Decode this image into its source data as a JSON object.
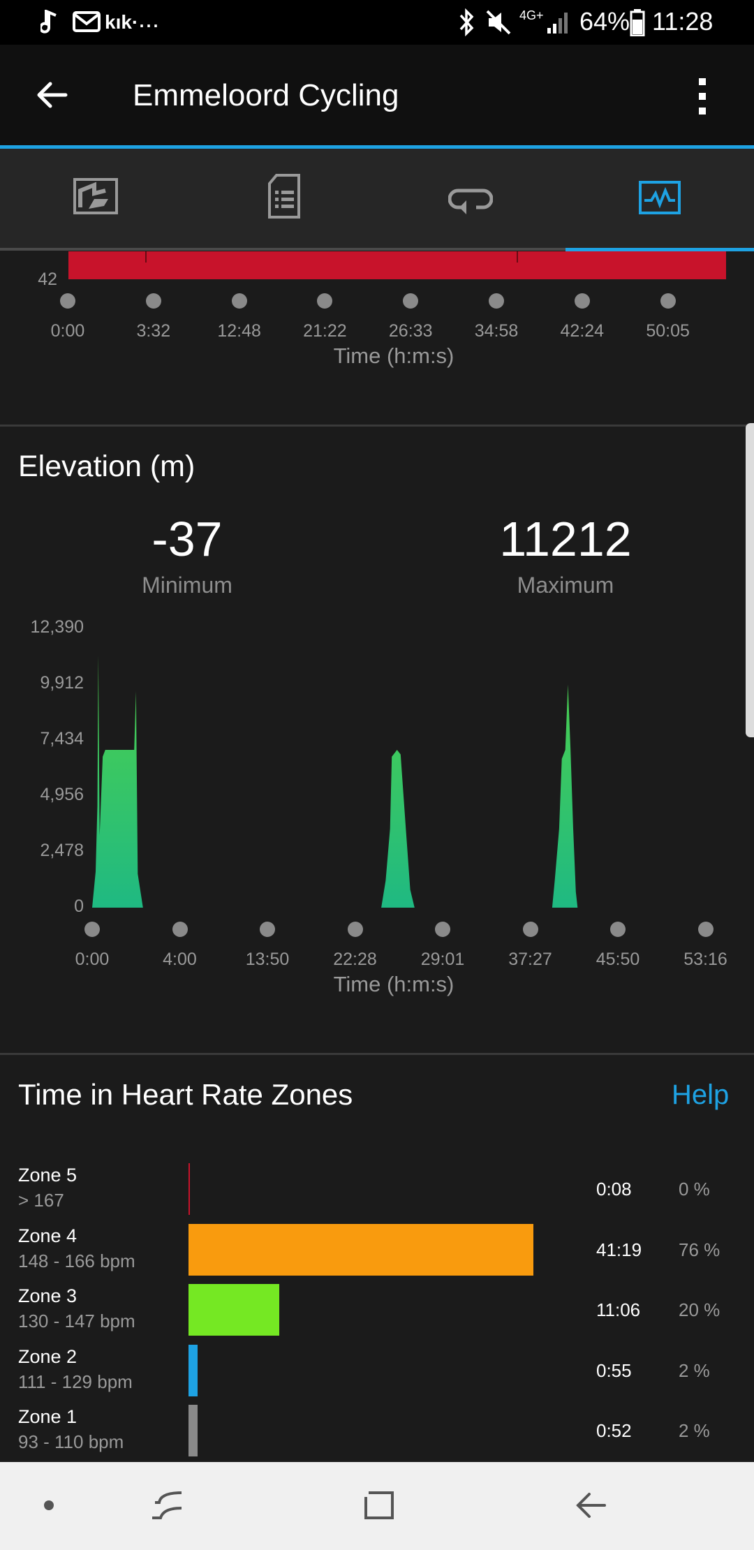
{
  "status_bar": {
    "battery": "64%",
    "time": "11:28",
    "network": "4G+",
    "app_label": "kık·",
    "more": "..."
  },
  "app_bar": {
    "title": "Emmeloord Cycling"
  },
  "tabs": [
    {
      "icon": "map-icon"
    },
    {
      "icon": "document-list-icon"
    },
    {
      "icon": "laps-icon"
    },
    {
      "icon": "chart-icon",
      "selected": true
    }
  ],
  "top_chart": {
    "y_label_visible": "42",
    "bar_color": "#c8132b",
    "x_ticks": [
      "0:00",
      "3:32",
      "12:48",
      "21:22",
      "26:33",
      "34:58",
      "42:24",
      "50:05"
    ],
    "x_title": "Time (h:m:s)"
  },
  "elevation": {
    "title": "Elevation (m)",
    "minimum_value": "-37",
    "minimum_label": "Minimum",
    "maximum_value": "11212",
    "maximum_label": "Maximum"
  },
  "chart_data": {
    "type": "area",
    "color": "#3ecb6a",
    "y_ticks": [
      "12,390",
      "9,912",
      "7,434",
      "4,956",
      "2,478",
      "0"
    ],
    "ylim": [
      0,
      12390
    ],
    "x_ticks": [
      "0:00",
      "4:00",
      "13:50",
      "22:28",
      "29:01",
      "37:27",
      "45:50",
      "53:16"
    ],
    "xlabel": "Time (h:m:s)",
    "x_tick_index": [
      0,
      1,
      2,
      3,
      4,
      5,
      6,
      7
    ],
    "points": [
      [
        0.0,
        0
      ],
      [
        0.04,
        1600
      ],
      [
        0.06,
        4500
      ],
      [
        0.07,
        11200
      ],
      [
        0.085,
        3200
      ],
      [
        0.12,
        6700
      ],
      [
        0.15,
        7000
      ],
      [
        0.2,
        7000
      ],
      [
        0.48,
        7000
      ],
      [
        0.5,
        9600
      ],
      [
        0.52,
        1500
      ],
      [
        0.58,
        0
      ],
      [
        3.3,
        0
      ],
      [
        3.35,
        1200
      ],
      [
        3.4,
        3500
      ],
      [
        3.42,
        6700
      ],
      [
        3.48,
        7000
      ],
      [
        3.52,
        6800
      ],
      [
        3.58,
        3500
      ],
      [
        3.63,
        800
      ],
      [
        3.68,
        0
      ],
      [
        5.25,
        0
      ],
      [
        5.28,
        1200
      ],
      [
        5.33,
        3500
      ],
      [
        5.36,
        6600
      ],
      [
        5.4,
        7000
      ],
      [
        5.43,
        9900
      ],
      [
        5.46,
        7000
      ],
      [
        5.49,
        3500
      ],
      [
        5.52,
        700
      ],
      [
        5.54,
        0
      ]
    ]
  },
  "hr_zones": {
    "title": "Time in Heart Rate Zones",
    "help_label": "Help",
    "zones": [
      {
        "name": "Zone 5",
        "range": "> 167",
        "time": "0:08",
        "percent": "0 %",
        "fraction": 0.0,
        "color": "#c8132b"
      },
      {
        "name": "Zone 4",
        "range": "148 - 166 bpm",
        "time": "41:19",
        "percent": "76 %",
        "fraction": 0.76,
        "color": "#f99b0e"
      },
      {
        "name": "Zone 3",
        "range": "130 - 147 bpm",
        "time": "11:06",
        "percent": "20 %",
        "fraction": 0.2,
        "color": "#75e823"
      },
      {
        "name": "Zone 2",
        "range": "111 - 129 bpm",
        "time": "0:55",
        "percent": "2 %",
        "fraction": 0.02,
        "color": "#1ea2e3"
      },
      {
        "name": "Zone 1",
        "range": "93 - 110 bpm",
        "time": "0:52",
        "percent": "2 %",
        "fraction": 0.02,
        "color": "#8a8a8a"
      }
    ]
  },
  "nav_bar": {
    "buttons": [
      "dot-icon",
      "recents-icon",
      "home-icon",
      "back-icon"
    ]
  }
}
